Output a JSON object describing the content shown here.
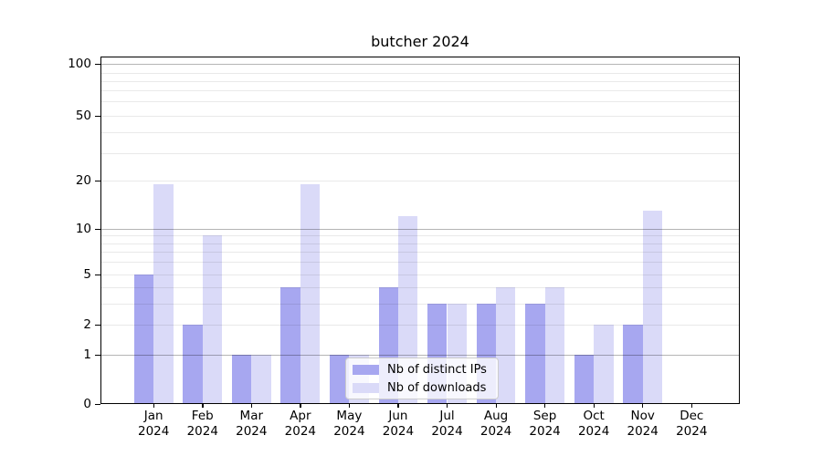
{
  "window": {
    "background": "#ffffff"
  },
  "chart_data": {
    "type": "bar",
    "title": "butcher 2024",
    "xlabel": "",
    "ylabel": "",
    "yscale": "symlog-like (linear 0-1, compressed log above)",
    "ylim": [
      0,
      110
    ],
    "grid": true,
    "legend_position": "lower center",
    "y_ticks": [
      100,
      50,
      20,
      10,
      5,
      2,
      1,
      0
    ],
    "categories": [
      "Jan\n2024",
      "Feb\n2024",
      "Mar\n2024",
      "Apr\n2024",
      "May\n2024",
      "Jun\n2024",
      "Jul\n2024",
      "Aug\n2024",
      "Sep\n2024",
      "Oct\n2024",
      "Nov\n2024",
      "Dec\n2024"
    ],
    "series": [
      {
        "name": "Nb of distinct IPs",
        "color": "#a7a7f0",
        "values": [
          5,
          2,
          1,
          4,
          1,
          4,
          3,
          3,
          3,
          1,
          2,
          0
        ]
      },
      {
        "name": "Nb of downloads",
        "color": "#dadaf8",
        "values": [
          19,
          9,
          1,
          19,
          1,
          12,
          3,
          4,
          4,
          2,
          13,
          0
        ]
      }
    ]
  },
  "colors": {
    "axis": "#000000",
    "grid_minor": "#e9e9e9",
    "grid_major": "#b5b5b5",
    "legend_border": "#cccccc",
    "text": "#000000"
  }
}
